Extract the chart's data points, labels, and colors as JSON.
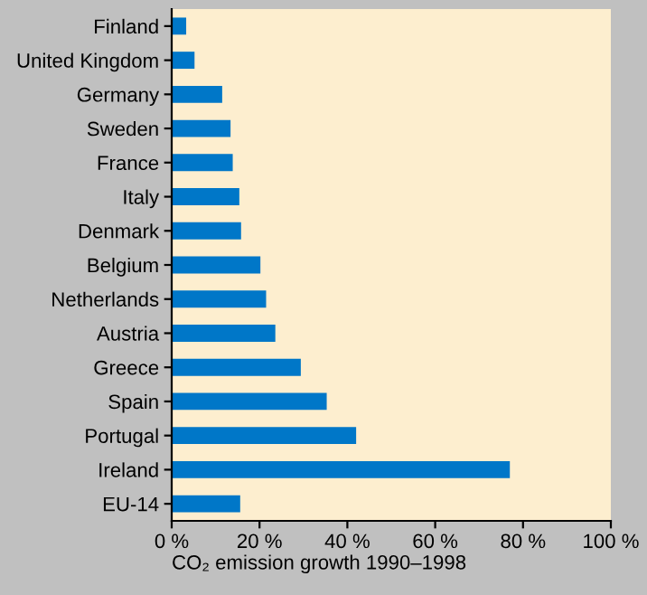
{
  "chart_data": {
    "type": "bar",
    "orientation": "horizontal",
    "xlabel": "CO₂ emission growth 1990–1998",
    "categories": [
      "Finland",
      "United Kingdom",
      "Germany",
      "Sweden",
      "France",
      "Italy",
      "Denmark",
      "Belgium",
      "Netherlands",
      "Austria",
      "Greece",
      "Spain",
      "Portugal",
      "Ireland",
      "EU-14"
    ],
    "values": [
      3.3,
      5.2,
      11.5,
      13.4,
      13.9,
      15.4,
      15.8,
      20.2,
      21.5,
      23.6,
      29.4,
      35.3,
      42.0,
      77.0,
      15.6
    ],
    "color": "#0077c8",
    "xlim": [
      0,
      100
    ],
    "xticks": [
      {
        "value": 0,
        "label": "0 %"
      },
      {
        "value": 20,
        "label": "20 %"
      },
      {
        "value": 40,
        "label": "40 %"
      },
      {
        "value": 60,
        "label": "60 %"
      },
      {
        "value": 80,
        "label": "80 %"
      },
      {
        "value": 100,
        "label": "100 %"
      }
    ],
    "grid": false,
    "legend": false
  }
}
